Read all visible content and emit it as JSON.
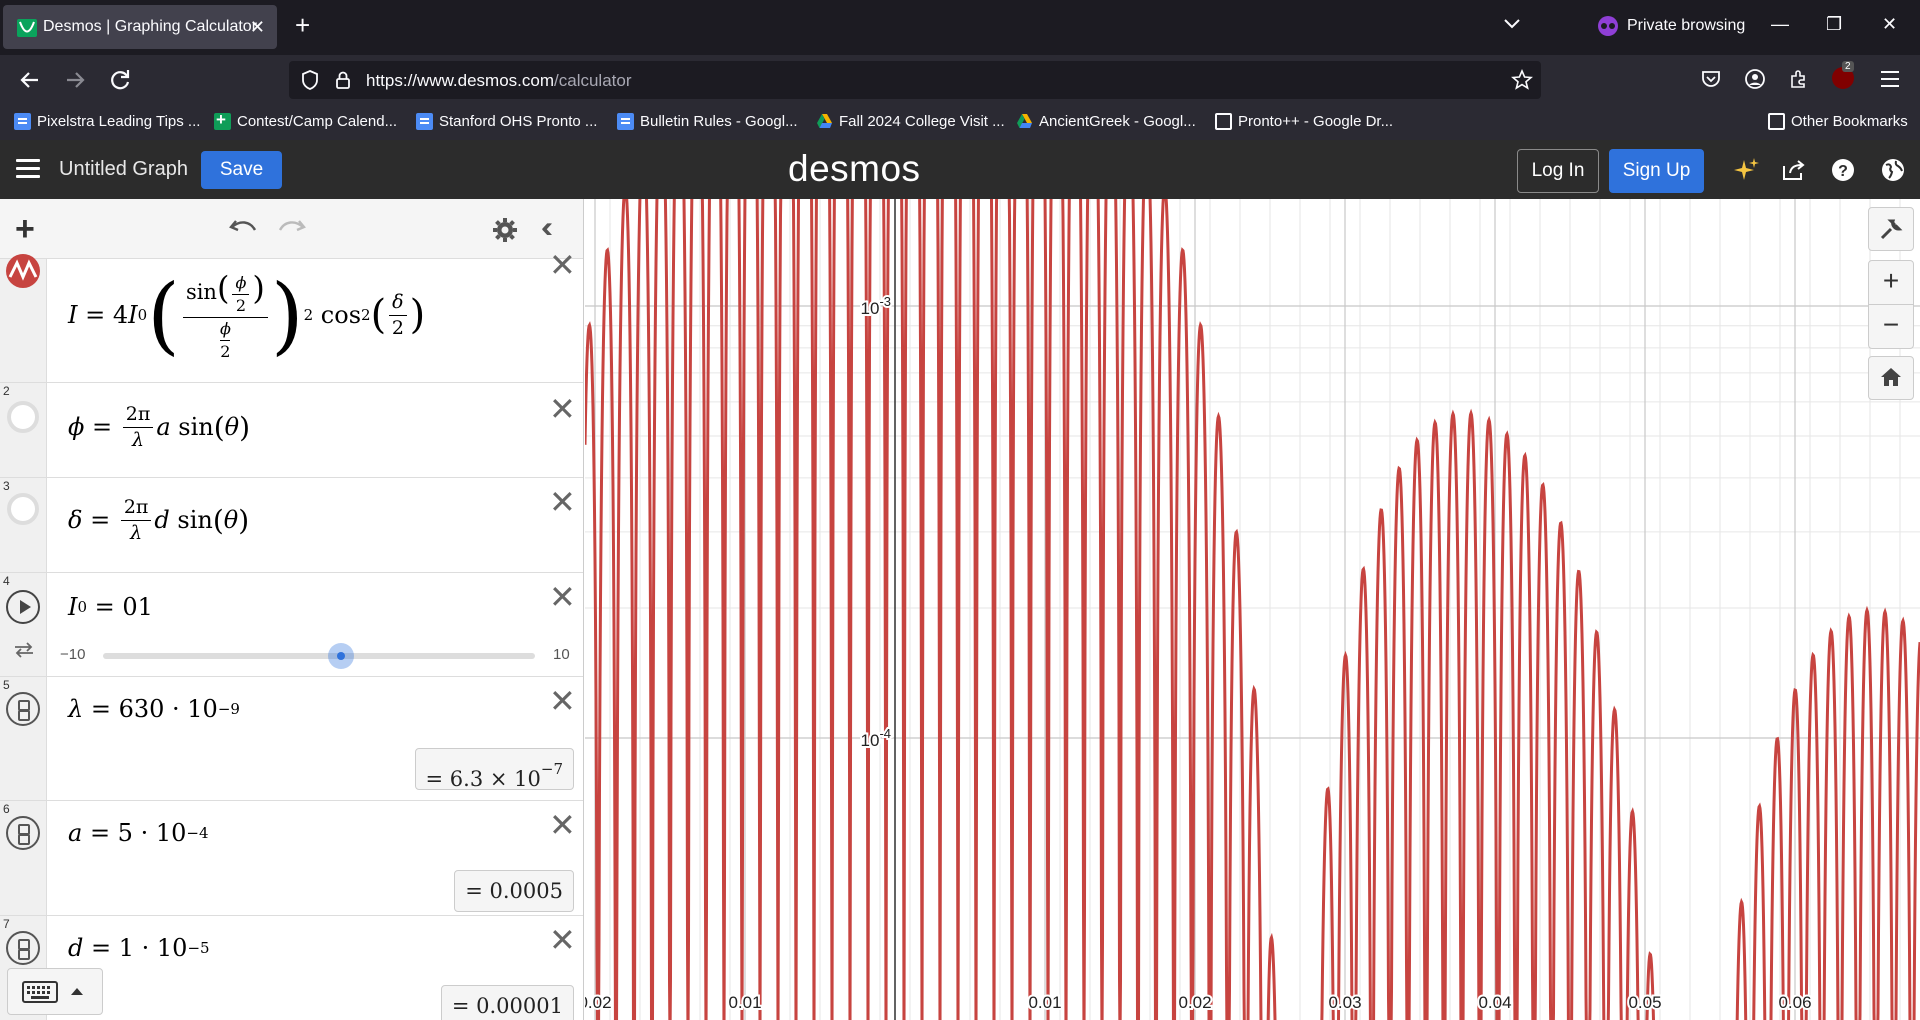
{
  "browser": {
    "tab_title": "Desmos | Graphing Calculator",
    "private_label": "Private browsing",
    "url_domain": "https://www.desmos.com",
    "url_path": "/calculator",
    "badge_count": "2",
    "bookmarks": [
      {
        "label": "Pixelstra Leading Tips ...",
        "icon": "doc-icon"
      },
      {
        "label": "Contest/Camp Calend...",
        "icon": "sheet-icon"
      },
      {
        "label": "Stanford OHS Pronto ...",
        "icon": "doc-icon"
      },
      {
        "label": "Bulletin Rules - Googl...",
        "icon": "doc-icon"
      },
      {
        "label": "Fall 2024 College Visit ...",
        "icon": "drive-icon"
      },
      {
        "label": "AncientGreek - Googl...",
        "icon": "drive-icon"
      },
      {
        "label": "Pronto++ - Google Dr...",
        "icon": "globe-icon"
      }
    ],
    "other_bookmarks": "Other Bookmarks"
  },
  "header": {
    "graph_title": "Untitled Graph",
    "save_label": "Save",
    "brand": "desmos",
    "login_label": "Log In",
    "signup_label": "Sign Up"
  },
  "expressions": [
    {
      "index": "1",
      "color": "#c74440"
    },
    {
      "index": "2"
    },
    {
      "index": "3"
    },
    {
      "index": "4",
      "slider_min": "−10",
      "slider_max": "10",
      "slider_value": 1
    },
    {
      "index": "5",
      "result_coef": "= 6.3 × 10",
      "result_exp": "−7"
    },
    {
      "index": "6",
      "result": "= 0.0005"
    },
    {
      "index": "7",
      "result": "= 0.00001"
    }
  ],
  "graph": {
    "curve_color": "#c74440",
    "x_tick_labels": [
      {
        "value": -0.02,
        "label": "0.02"
      },
      {
        "value": -0.01,
        "label": "0.01"
      },
      {
        "value": 0.01,
        "label": "0.01"
      },
      {
        "value": 0.02,
        "label": "0.02"
      },
      {
        "value": 0.03,
        "label": "0.03"
      },
      {
        "value": 0.04,
        "label": "0.04"
      },
      {
        "value": 0.05,
        "label": "0.05"
      },
      {
        "value": 0.06,
        "label": "0.06"
      }
    ],
    "y_tick_labels": [
      {
        "base": "10",
        "exp": "-3"
      },
      {
        "base": "10",
        "exp": "-4"
      }
    ]
  }
}
